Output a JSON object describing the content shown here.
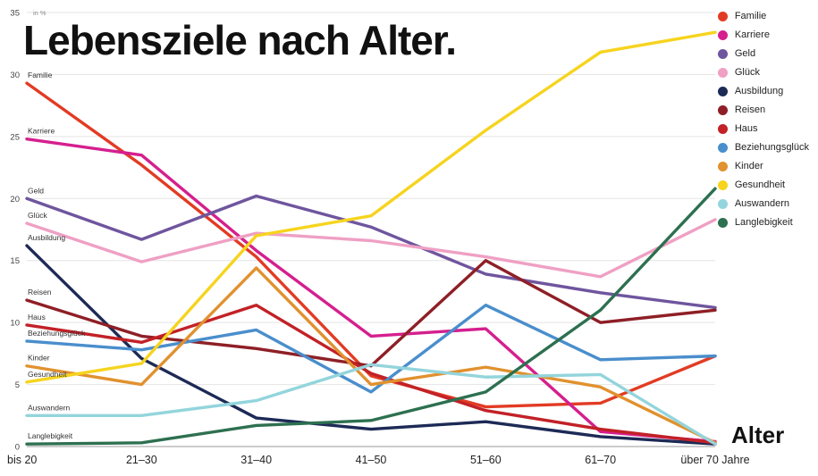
{
  "title": "Lebensziele nach Alter.",
  "x_axis_label": "Alter",
  "y_axis_unit": "in %",
  "chart_data": {
    "type": "line",
    "title": "Lebensziele nach Alter.",
    "xlabel": "Alter",
    "ylabel": "in %",
    "ylim": [
      0,
      35
    ],
    "yticks": [
      0,
      5,
      10,
      15,
      20,
      25,
      30,
      35
    ],
    "grid": "horizontal",
    "legend_position": "top-right",
    "categories": [
      "bis 20",
      "21–30",
      "31–40",
      "41–50",
      "51–60",
      "61–70",
      "über 70 Jahre"
    ],
    "series": [
      {
        "name": "Familie",
        "color": "#e23b24",
        "values": [
          29.3,
          22.7,
          15.3,
          5.7,
          3.2,
          3.5,
          7.3
        ]
      },
      {
        "name": "Karriere",
        "color": "#d51f8e",
        "values": [
          24.8,
          23.5,
          15.8,
          8.9,
          9.5,
          1.2,
          0.4
        ]
      },
      {
        "name": "Geld",
        "color": "#6f559e",
        "values": [
          20.0,
          16.7,
          20.2,
          17.7,
          13.9,
          12.4,
          11.2
        ]
      },
      {
        "name": "Glück",
        "color": "#efa0c4",
        "values": [
          18.0,
          14.9,
          17.2,
          16.6,
          15.3,
          13.7,
          18.3
        ]
      },
      {
        "name": "Ausbildung",
        "color": "#1d2a56",
        "values": [
          16.2,
          7.1,
          2.3,
          1.4,
          2.0,
          0.8,
          0.2
        ]
      },
      {
        "name": "Reisen",
        "color": "#8e1f26",
        "values": [
          11.8,
          8.9,
          7.9,
          6.5,
          15.0,
          10.0,
          11.0
        ]
      },
      {
        "name": "Haus",
        "color": "#c22126",
        "values": [
          9.8,
          8.4,
          11.4,
          5.9,
          2.9,
          1.4,
          0.3
        ]
      },
      {
        "name": "Beziehungsglück",
        "color": "#4a8ecc",
        "values": [
          8.5,
          7.8,
          9.4,
          4.4,
          11.4,
          7.0,
          7.3
        ]
      },
      {
        "name": "Kinder",
        "color": "#e1912f",
        "values": [
          6.5,
          5.0,
          14.4,
          5.0,
          6.4,
          4.8,
          0.3
        ]
      },
      {
        "name": "Gesundheit",
        "color": "#f6d41e",
        "values": [
          5.2,
          6.7,
          17.0,
          18.6,
          25.5,
          31.8,
          33.4
        ]
      },
      {
        "name": "Auswandern",
        "color": "#93d5dc",
        "values": [
          2.5,
          2.5,
          3.7,
          6.6,
          5.6,
          5.8,
          0.2
        ]
      },
      {
        "name": "Langlebigkeit",
        "color": "#2d7050",
        "values": [
          0.2,
          0.3,
          1.7,
          2.1,
          4.4,
          11.0,
          20.8
        ]
      }
    ]
  }
}
